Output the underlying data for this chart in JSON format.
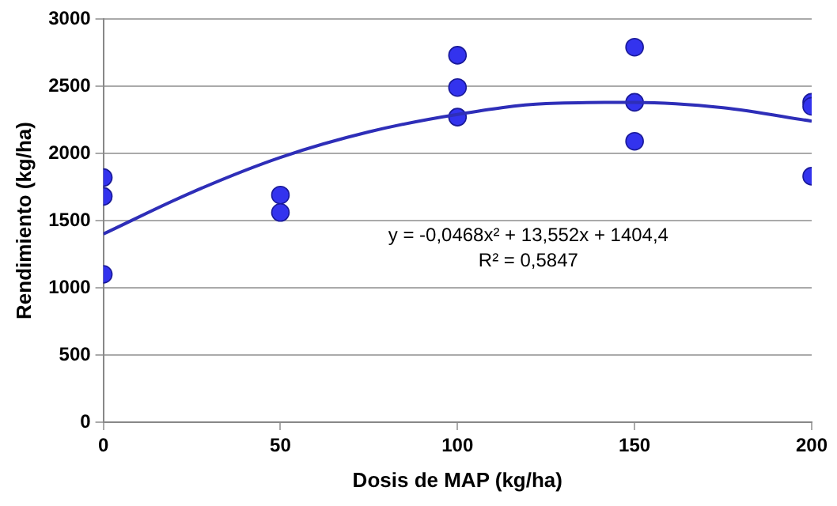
{
  "chart_data": {
    "type": "scatter",
    "xlabel": "Dosis de MAP (kg/ha)",
    "ylabel": "Rendimiento (kg/ha)",
    "xlim": [
      0,
      200
    ],
    "xticks": [
      0,
      50,
      100,
      150,
      200
    ],
    "ylim": [
      0,
      3000
    ],
    "yticks": [
      0,
      500,
      1000,
      1500,
      2000,
      2500,
      3000
    ],
    "grid": "y",
    "legend": false,
    "annotations": [
      "y = -0,0468x² + 13,552x + 1404,4",
      "R² = 0,5847"
    ],
    "series": [
      {
        "type": "scatter",
        "marker": "circle",
        "color": "#3333ee",
        "x": [
          0,
          0,
          0,
          50,
          50,
          100,
          100,
          100,
          150,
          150,
          150,
          200,
          200,
          200
        ],
        "values": [
          1820,
          1680,
          1100,
          1690,
          1560,
          2730,
          2490,
          2270,
          2790,
          2380,
          2090,
          2380,
          2350,
          1830
        ]
      },
      {
        "type": "line",
        "marker": "none",
        "color": "#2e2eb8",
        "line_style": "solid",
        "x": [
          0,
          25,
          50,
          75,
          100,
          125,
          150,
          175,
          200
        ],
        "values": [
          1400,
          1710,
          1970,
          2160,
          2290,
          2370,
          2380,
          2340,
          2240
        ]
      }
    ]
  }
}
